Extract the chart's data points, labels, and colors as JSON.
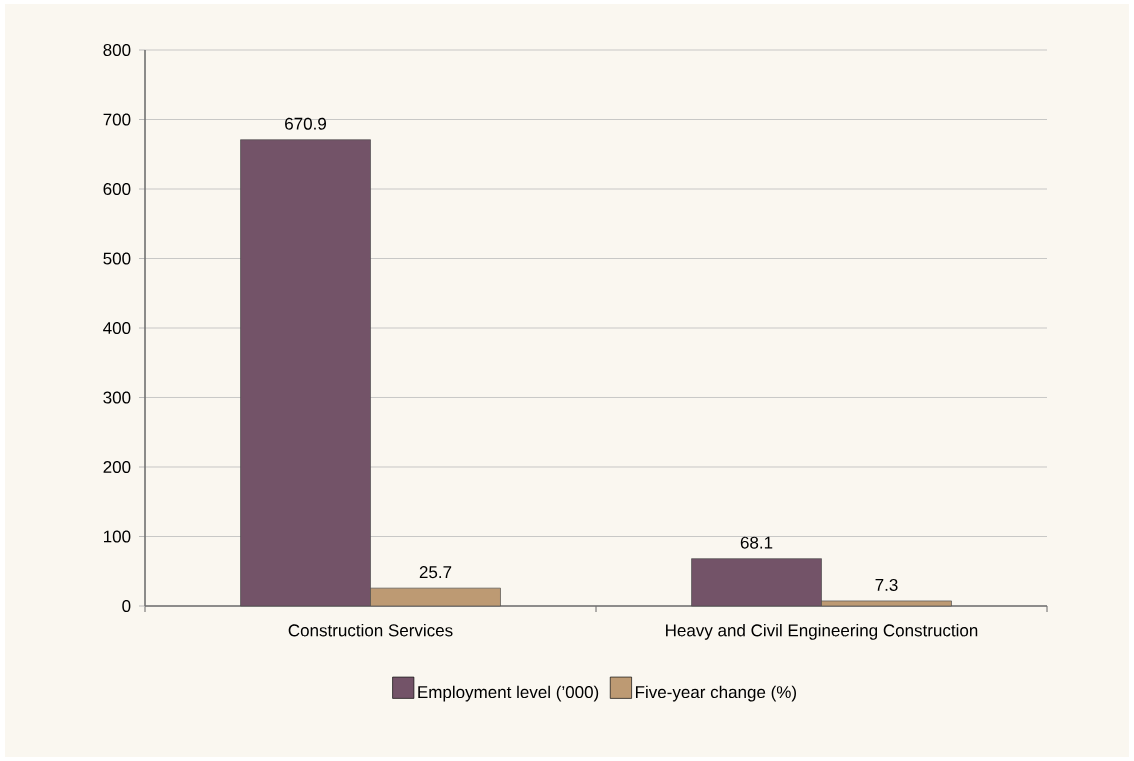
{
  "chart_data": {
    "type": "bar",
    "categories": [
      "Construction Services",
      "Heavy and Civil Engineering Construction"
    ],
    "series": [
      {
        "name": "Employment level (’000)",
        "color": "#735368",
        "values": [
          670.9,
          68.1
        ]
      },
      {
        "name": "Five-year change (%)",
        "color": "#bd9a73",
        "values": [
          25.7,
          7.3
        ]
      }
    ],
    "ylim": [
      0,
      800
    ],
    "yticks": [
      0,
      100,
      200,
      300,
      400,
      500,
      600,
      700,
      800
    ],
    "grid": "y",
    "legend": "bottom",
    "data_labels": true
  }
}
